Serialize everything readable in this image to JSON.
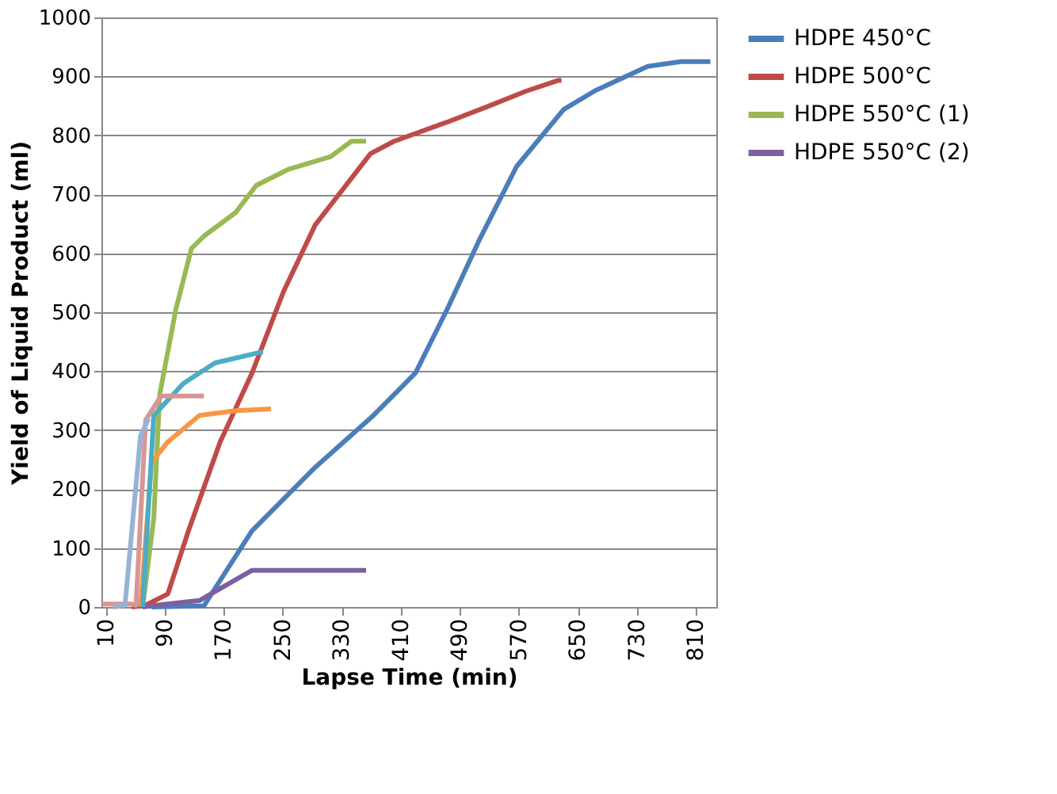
{
  "chart_data": {
    "type": "line",
    "xlabel": "Lapse Time (min)",
    "ylabel": "Yield of Liquid Product (ml)",
    "xlim": [
      4,
      838
    ],
    "xticks": [
      10,
      90,
      170,
      250,
      330,
      410,
      490,
      570,
      650,
      730,
      810
    ],
    "ylim": [
      0,
      1000
    ],
    "yticks": [
      0,
      100,
      200,
      300,
      400,
      500,
      600,
      700,
      800,
      900,
      1000
    ],
    "grid": "y",
    "legend": "right",
    "line_style": "solid",
    "marker": "none",
    "series": [
      {
        "name": "HDPE 450°C",
        "color": "#4a7ebb",
        "x": [
          72,
          143,
          208,
          294,
          373,
          430,
          473,
          516,
          567,
          631,
          674,
          745,
          790,
          830
        ],
        "values": [
          0,
          2,
          129,
          237,
          325,
          397,
          505,
          621,
          747,
          844,
          876,
          917,
          925,
          925
        ]
      },
      {
        "name": "HDPE 500°C",
        "color": "#be4b48",
        "x": [
          45,
          64,
          94,
          122,
          165,
          208,
          251,
          294,
          343,
          369,
          401,
          472,
          530,
          580,
          623,
          628
        ],
        "values": [
          0,
          3,
          22,
          129,
          280,
          396,
          535,
          648,
          727,
          769,
          790,
          822,
          850,
          875,
          893,
          893
        ]
      },
      {
        "name": "HDPE 550°C (1)",
        "color": "#98b954",
        "x": [
          60,
          75,
          83,
          105,
          126,
          143,
          186,
          214,
          257,
          315,
          343,
          363
        ],
        "values": [
          0,
          150,
          360,
          505,
          608,
          629,
          669,
          715,
          742,
          764,
          790,
          790
        ]
      },
      {
        "name": "HDPE 550°C (2)",
        "color": "#7d60a0",
        "x": [
          60,
          79,
          137,
          208,
          363
        ],
        "values": [
          0,
          3,
          11,
          62,
          62
        ]
      },
      {
        "color": "#f79646",
        "x": [
          57,
          72,
          94,
          137,
          186,
          234
        ],
        "values": [
          0,
          245,
          280,
          325,
          333,
          336
        ]
      },
      {
        "color": "#4bacc6",
        "x": [
          60,
          75,
          115,
          158,
          223
        ],
        "values": [
          0,
          325,
          379,
          414,
          433
        ]
      },
      {
        "color": "#d99694",
        "x": [
          5,
          45,
          51,
          64,
          85,
          143
        ],
        "values": [
          5,
          5,
          3,
          317,
          358,
          358
        ]
      },
      {
        "color": "#95b3d7",
        "x": [
          20,
          36,
          57,
          68
        ],
        "values": [
          0,
          3,
          290,
          320
        ]
      }
    ]
  }
}
